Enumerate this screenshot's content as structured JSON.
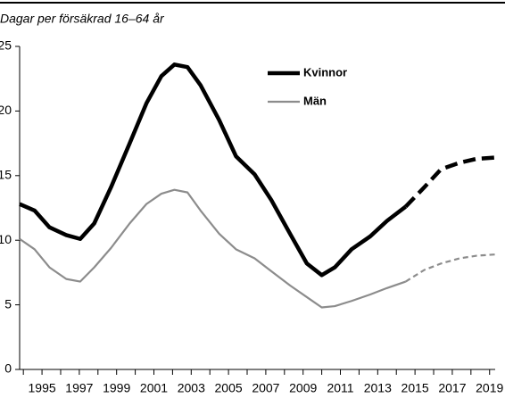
{
  "chart_data": {
    "type": "line",
    "subtitle": "Dagar per försäkrad 16–64 år",
    "x": [
      1993.8,
      1994.6,
      1995.4,
      1996.3,
      1997.05,
      1997.8,
      1998.7,
      1999.7,
      2000.6,
      2001.4,
      2002.1,
      2002.8,
      2003.5,
      2004.5,
      2005.4,
      2006.4,
      2007.3,
      2008.3,
      2009.2,
      2010.0,
      2010.7,
      2011.6,
      2012.6,
      2013.5,
      2014.5,
      2015.5,
      2016.4,
      2017.4,
      2018.3,
      2019.3
    ],
    "series": [
      {
        "name": "Kvinnor",
        "color": "#000000",
        "width": 4.5,
        "values": [
          12.8,
          12.3,
          11.0,
          10.4,
          10.1,
          11.3,
          14.1,
          17.5,
          20.6,
          22.7,
          23.6,
          23.4,
          22.0,
          19.3,
          16.5,
          15.1,
          13.1,
          10.5,
          8.2,
          7.3,
          7.9,
          9.3,
          10.3,
          11.5,
          12.6,
          14.1,
          15.5,
          16.0,
          16.3,
          16.4
        ]
      },
      {
        "name": "Män",
        "color": "#8c8c8c",
        "width": 2.2,
        "values": [
          10.1,
          9.3,
          7.9,
          7.0,
          6.8,
          7.9,
          9.4,
          11.3,
          12.8,
          13.6,
          13.9,
          13.7,
          12.3,
          10.5,
          9.3,
          8.6,
          7.6,
          6.5,
          5.6,
          4.8,
          4.9,
          5.3,
          5.8,
          6.3,
          6.8,
          7.7,
          8.2,
          8.6,
          8.8,
          8.9
        ]
      }
    ],
    "dashed_from": 2014.5,
    "xlim": [
      1993.8,
      2019.3
    ],
    "xticks": [
      1995,
      1997,
      1999,
      2001,
      2003,
      2005,
      2007,
      2009,
      2011,
      2013,
      2015,
      2017,
      2019
    ],
    "xminor_ticks": [
      1994,
      1996,
      1998,
      2000,
      2002,
      2004,
      2006,
      2008,
      2010,
      2012,
      2014,
      2016,
      2018
    ],
    "ylim": [
      0,
      25
    ],
    "yticks": [
      0,
      5,
      10,
      15,
      20,
      25
    ],
    "legend": "top-center"
  }
}
